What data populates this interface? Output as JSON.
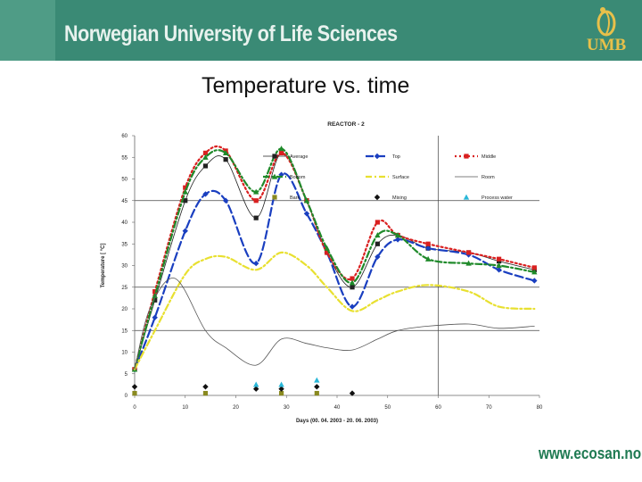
{
  "header": {
    "university_name": "Norwegian University of Life Sciences",
    "logo_text": "UMB",
    "brand_color": "#3a8a75"
  },
  "slide": {
    "title": "Temperature vs. time"
  },
  "footer": {
    "url": "www.ecosan.no"
  },
  "chart_data": {
    "type": "line",
    "title": "REACTOR - 2",
    "xlabel": "Days (00. 04. 2003 - 20. 06. 2003)",
    "ylabel": "Temperature [ °C]",
    "xlim": [
      0,
      80
    ],
    "ylim": [
      0,
      60
    ],
    "x_ticks": [
      "0",
      "10",
      "20",
      "30",
      "40",
      "50",
      "60",
      "70",
      "80"
    ],
    "y_ticks": [
      "0",
      "5",
      "10",
      "15",
      "20",
      "25",
      "30",
      "35",
      "40",
      "45",
      "50",
      "55",
      "60"
    ],
    "reference_lines": {
      "horizontal": [
        15,
        25,
        45
      ],
      "vertical": [
        60
      ]
    },
    "series": [
      {
        "name": "Average",
        "color": "#222222",
        "style": "thin",
        "marker": "square",
        "x": [
          0,
          4,
          10,
          14,
          18,
          24,
          29,
          34,
          38,
          43,
          48,
          52,
          58,
          66,
          72,
          79
        ],
        "y": [
          6,
          22,
          45,
          53,
          54.5,
          41,
          56,
          45,
          33,
          25,
          35,
          37,
          34,
          33,
          31,
          29
        ]
      },
      {
        "name": "Top",
        "color": "#1a3fc0",
        "style": "dash",
        "marker": "diamond",
        "x": [
          0,
          4,
          10,
          14,
          18,
          24,
          29,
          34,
          38,
          43,
          48,
          52,
          58,
          66,
          72,
          79
        ],
        "y": [
          6,
          18,
          38,
          46.5,
          45,
          30.5,
          51,
          42,
          33,
          20.5,
          32,
          36,
          34,
          32.5,
          29,
          26.5
        ]
      },
      {
        "name": "Middle",
        "color": "#d92020",
        "style": "dot",
        "marker": "square",
        "x": [
          0,
          4,
          10,
          14,
          18,
          24,
          29,
          34,
          38,
          43,
          48,
          52,
          58,
          66,
          72,
          79
        ],
        "y": [
          6,
          24,
          48,
          56,
          56.5,
          45,
          56,
          45,
          33,
          27,
          40,
          37,
          35,
          33,
          31.5,
          29.5
        ]
      },
      {
        "name": "Bottom",
        "color": "#1f8a2a",
        "style": "dashdot",
        "marker": "triangle",
        "x": [
          0,
          4,
          10,
          14,
          18,
          24,
          29,
          34,
          38,
          43,
          48,
          52,
          58,
          66,
          72,
          79
        ],
        "y": [
          6,
          23,
          47,
          55,
          56,
          47,
          57,
          45,
          34,
          26,
          37,
          37,
          31.5,
          30.5,
          30,
          28.5
        ]
      },
      {
        "name": "Surface",
        "color": "#e8e030",
        "style": "dashdot",
        "marker": "none",
        "x": [
          0,
          4,
          10,
          14,
          18,
          24,
          29,
          34,
          38,
          43,
          48,
          52,
          58,
          66,
          72,
          79
        ],
        "y": [
          6,
          15,
          28,
          31.5,
          32,
          29,
          33,
          30,
          25,
          19.5,
          22,
          24,
          25.5,
          24,
          20.5,
          20
        ]
      },
      {
        "name": "Room",
        "color": "#555555",
        "style": "thin",
        "marker": "none",
        "x": [
          0,
          3,
          8,
          14,
          18,
          24,
          29,
          34,
          38,
          43,
          48,
          52,
          58,
          66,
          72,
          79
        ],
        "y": [
          6,
          20,
          27,
          15,
          11,
          7,
          13,
          12,
          11,
          10.5,
          13,
          15,
          16,
          16.5,
          15.5,
          16
        ]
      }
    ],
    "scatter_series": [
      {
        "name": "Bark",
        "color": "#8a8a20",
        "marker": "square",
        "points": [
          [
            0,
            0.5
          ],
          [
            14,
            0.5
          ],
          [
            29,
            0.5
          ],
          [
            36,
            0.5
          ]
        ]
      },
      {
        "name": "Mixing",
        "color": "#111111",
        "marker": "diamond",
        "points": [
          [
            0,
            2
          ],
          [
            14,
            2
          ],
          [
            24,
            1.5
          ],
          [
            29,
            1.5
          ],
          [
            36,
            2
          ],
          [
            43,
            0.5
          ]
        ]
      },
      {
        "name": "Process water",
        "color": "#2ab7d8",
        "marker": "triangle",
        "points": [
          [
            24,
            2.5
          ],
          [
            29,
            2.5
          ],
          [
            36,
            3.5
          ]
        ]
      }
    ],
    "legend": [
      {
        "label": "Average",
        "color": "#222222",
        "style": "thin",
        "marker": "square"
      },
      {
        "label": "Top",
        "color": "#1a3fc0",
        "style": "dash",
        "marker": "diamond"
      },
      {
        "label": "Middle",
        "color": "#d92020",
        "style": "dot",
        "marker": "square"
      },
      {
        "label": "Bottom",
        "color": "#1f8a2a",
        "style": "dashdot",
        "marker": "triangle"
      },
      {
        "label": "Surface",
        "color": "#e8e030",
        "style": "dashdot",
        "marker": "none"
      },
      {
        "label": "Room",
        "color": "#555555",
        "style": "thin",
        "marker": "none"
      },
      {
        "label": "Bark",
        "color": "#8a8a20",
        "style": "none",
        "marker": "square"
      },
      {
        "label": "Mixing",
        "color": "#111111",
        "style": "none",
        "marker": "diamond"
      },
      {
        "label": "Process water",
        "color": "#2ab7d8",
        "style": "none",
        "marker": "triangle"
      }
    ]
  }
}
